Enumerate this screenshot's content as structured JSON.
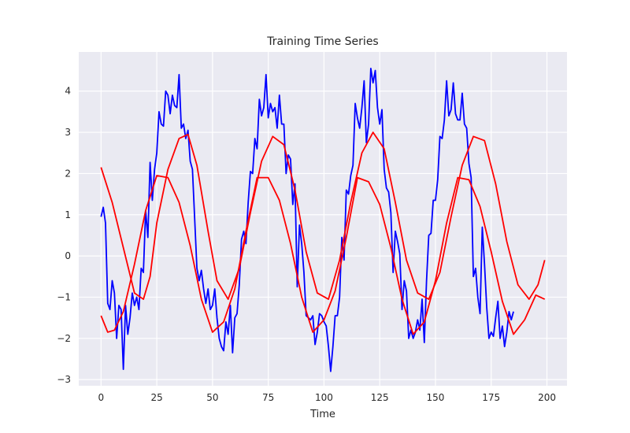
{
  "chart_data": {
    "type": "line",
    "title": "Training Time Series",
    "xlabel": "Time",
    "ylabel": "",
    "xlim": [
      -10,
      209
    ],
    "ylim": [
      -3.15,
      4.95
    ],
    "xticks": [
      0,
      25,
      50,
      75,
      100,
      125,
      150,
      175,
      200
    ],
    "yticks": [
      -3,
      -2,
      -1,
      0,
      1,
      2,
      3,
      4
    ],
    "grid": true,
    "background": "#EAEAF2",
    "series": [
      {
        "color": "#0000FF",
        "points": [
          [
            0,
            0.95
          ],
          [
            1,
            1.18
          ],
          [
            2,
            0.8
          ],
          [
            3,
            -1.15
          ],
          [
            4,
            -1.3
          ],
          [
            5,
            -0.6
          ],
          [
            6,
            -0.9
          ],
          [
            7,
            -2.0
          ],
          [
            8,
            -1.2
          ],
          [
            9,
            -1.3
          ],
          [
            10,
            -2.75
          ],
          [
            11,
            -1.2
          ],
          [
            12,
            -1.9
          ],
          [
            13,
            -1.5
          ],
          [
            14,
            -0.9
          ],
          [
            15,
            -1.2
          ],
          [
            16,
            -1.0
          ],
          [
            17,
            -1.3
          ],
          [
            18,
            -0.3
          ],
          [
            19,
            -0.4
          ],
          [
            20,
            1.1
          ],
          [
            21,
            0.45
          ],
          [
            22,
            2.27
          ],
          [
            23,
            1.35
          ],
          [
            24,
            2.1
          ],
          [
            25,
            2.5
          ],
          [
            26,
            3.5
          ],
          [
            27,
            3.2
          ],
          [
            28,
            3.15
          ],
          [
            29,
            4.0
          ],
          [
            30,
            3.9
          ],
          [
            31,
            3.45
          ],
          [
            32,
            3.9
          ],
          [
            33,
            3.65
          ],
          [
            34,
            3.6
          ],
          [
            35,
            4.4
          ],
          [
            36,
            3.1
          ],
          [
            37,
            3.2
          ],
          [
            38,
            2.85
          ],
          [
            39,
            3.05
          ],
          [
            40,
            2.3
          ],
          [
            41,
            2.1
          ],
          [
            42,
            0.9
          ],
          [
            43,
            -0.3
          ],
          [
            44,
            -0.6
          ],
          [
            45,
            -0.35
          ],
          [
            46,
            -0.8
          ],
          [
            47,
            -1.15
          ],
          [
            48,
            -0.8
          ],
          [
            49,
            -1.3
          ],
          [
            50,
            -1.2
          ],
          [
            51,
            -0.8
          ],
          [
            52,
            -1.5
          ],
          [
            53,
            -2.0
          ],
          [
            54,
            -2.2
          ],
          [
            55,
            -2.3
          ],
          [
            56,
            -1.6
          ],
          [
            57,
            -1.9
          ],
          [
            58,
            -1.2
          ],
          [
            59,
            -2.35
          ],
          [
            60,
            -1.5
          ],
          [
            61,
            -1.4
          ],
          [
            62,
            -0.7
          ],
          [
            63,
            0.4
          ],
          [
            64,
            0.6
          ],
          [
            65,
            0.3
          ],
          [
            66,
            1.3
          ],
          [
            67,
            2.05
          ],
          [
            68,
            2.0
          ],
          [
            69,
            2.85
          ],
          [
            70,
            2.6
          ],
          [
            71,
            3.8
          ],
          [
            72,
            3.4
          ],
          [
            73,
            3.6
          ],
          [
            74,
            4.4
          ],
          [
            75,
            3.35
          ],
          [
            76,
            3.7
          ],
          [
            77,
            3.5
          ],
          [
            78,
            3.6
          ],
          [
            79,
            3.1
          ],
          [
            80,
            3.9
          ],
          [
            81,
            3.2
          ],
          [
            82,
            3.2
          ],
          [
            83,
            2.0
          ],
          [
            84,
            2.45
          ],
          [
            85,
            2.35
          ],
          [
            86,
            1.25
          ],
          [
            87,
            1.75
          ],
          [
            88,
            -0.75
          ],
          [
            89,
            0.75
          ],
          [
            90,
            0.3
          ],
          [
            91,
            -0.4
          ],
          [
            92,
            -1.45
          ],
          [
            93,
            -1.5
          ],
          [
            94,
            -1.55
          ],
          [
            95,
            -1.45
          ],
          [
            96,
            -2.15
          ],
          [
            97,
            -1.85
          ],
          [
            98,
            -1.4
          ],
          [
            99,
            -1.45
          ],
          [
            100,
            -1.6
          ],
          [
            101,
            -1.7
          ],
          [
            102,
            -2.2
          ],
          [
            103,
            -2.8
          ],
          [
            104,
            -2.2
          ],
          [
            105,
            -1.45
          ],
          [
            106,
            -1.45
          ],
          [
            107,
            -1.0
          ],
          [
            108,
            0.45
          ],
          [
            109,
            -0.1
          ],
          [
            110,
            1.6
          ],
          [
            111,
            1.5
          ],
          [
            112,
            1.95
          ],
          [
            113,
            2.2
          ],
          [
            114,
            3.7
          ],
          [
            115,
            3.35
          ],
          [
            116,
            3.1
          ],
          [
            117,
            3.6
          ],
          [
            118,
            4.25
          ],
          [
            119,
            2.75
          ],
          [
            120,
            3.2
          ],
          [
            121,
            4.55
          ],
          [
            122,
            4.2
          ],
          [
            123,
            4.5
          ],
          [
            124,
            3.6
          ],
          [
            125,
            3.2
          ],
          [
            126,
            3.55
          ],
          [
            127,
            2.1
          ],
          [
            128,
            1.65
          ],
          [
            129,
            1.55
          ],
          [
            130,
            1.05
          ],
          [
            131,
            -0.4
          ],
          [
            132,
            0.6
          ],
          [
            133,
            0.35
          ],
          [
            134,
            0.05
          ],
          [
            135,
            -1.3
          ],
          [
            136,
            -0.6
          ],
          [
            137,
            -0.85
          ],
          [
            138,
            -2.0
          ],
          [
            139,
            -1.8
          ],
          [
            140,
            -2.0
          ],
          [
            141,
            -1.85
          ],
          [
            142,
            -1.55
          ],
          [
            143,
            -1.8
          ],
          [
            144,
            -1.05
          ],
          [
            145,
            -2.1
          ],
          [
            146,
            -0.6
          ],
          [
            147,
            0.5
          ],
          [
            148,
            0.55
          ],
          [
            149,
            1.35
          ],
          [
            150,
            1.35
          ],
          [
            151,
            1.85
          ],
          [
            152,
            2.9
          ],
          [
            153,
            2.85
          ],
          [
            154,
            3.3
          ],
          [
            155,
            4.25
          ],
          [
            156,
            3.4
          ],
          [
            157,
            3.55
          ],
          [
            158,
            4.2
          ],
          [
            159,
            3.45
          ],
          [
            160,
            3.3
          ],
          [
            161,
            3.3
          ],
          [
            162,
            3.95
          ],
          [
            163,
            3.2
          ],
          [
            164,
            3.1
          ],
          [
            165,
            2.25
          ],
          [
            166,
            1.9
          ],
          [
            167,
            -0.5
          ],
          [
            168,
            -0.3
          ],
          [
            169,
            -1.0
          ],
          [
            170,
            -1.4
          ],
          [
            171,
            0.7
          ],
          [
            172,
            -0.2
          ],
          [
            173,
            -1.25
          ],
          [
            174,
            -2.0
          ],
          [
            175,
            -1.85
          ],
          [
            176,
            -1.95
          ],
          [
            177,
            -1.5
          ],
          [
            178,
            -1.1
          ],
          [
            179,
            -2.0
          ],
          [
            180,
            -1.7
          ],
          [
            181,
            -2.2
          ],
          [
            182,
            -1.85
          ],
          [
            183,
            -1.35
          ],
          [
            184,
            -1.55
          ],
          [
            185,
            -1.35
          ]
        ]
      },
      {
        "color": "#FF0000",
        "points": [
          [
            0,
            2.15
          ],
          [
            5,
            1.3
          ],
          [
            10,
            0.2
          ],
          [
            15,
            -0.9
          ],
          [
            19,
            -1.05
          ],
          [
            22,
            -0.5
          ],
          [
            25,
            0.8
          ],
          [
            30,
            2.1
          ],
          [
            35,
            2.85
          ],
          [
            39,
            2.95
          ],
          [
            43,
            2.2
          ],
          [
            48,
            0.6
          ],
          [
            52,
            -0.6
          ],
          [
            57,
            -1.05
          ],
          [
            62,
            -0.3
          ],
          [
            67,
            1.05
          ],
          [
            72,
            2.3
          ],
          [
            77,
            2.9
          ],
          [
            82,
            2.7
          ],
          [
            87,
            1.6
          ],
          [
            92,
            0.1
          ],
          [
            97,
            -0.9
          ],
          [
            102,
            -1.05
          ],
          [
            107,
            -0.1
          ],
          [
            112,
            1.3
          ],
          [
            117,
            2.5
          ],
          [
            122,
            3.0
          ],
          [
            127,
            2.6
          ],
          [
            132,
            1.3
          ],
          [
            137,
            -0.1
          ],
          [
            142,
            -0.9
          ],
          [
            147,
            -1.05
          ],
          [
            152,
            -0.4
          ],
          [
            157,
            0.95
          ],
          [
            162,
            2.2
          ],
          [
            167,
            2.9
          ],
          [
            172,
            2.8
          ],
          [
            177,
            1.75
          ],
          [
            182,
            0.35
          ],
          [
            187,
            -0.7
          ],
          [
            192,
            -1.05
          ],
          [
            196,
            -0.7
          ],
          [
            199,
            -0.1
          ]
        ]
      },
      {
        "color": "#FF0000",
        "points": [
          [
            0,
            -1.45
          ],
          [
            3,
            -1.85
          ],
          [
            6,
            -1.8
          ],
          [
            10,
            -1.35
          ],
          [
            15,
            -0.2
          ],
          [
            20,
            1.1
          ],
          [
            25,
            1.95
          ],
          [
            30,
            1.9
          ],
          [
            35,
            1.3
          ],
          [
            40,
            0.25
          ],
          [
            45,
            -1.05
          ],
          [
            50,
            -1.85
          ],
          [
            55,
            -1.6
          ],
          [
            60,
            -0.8
          ],
          [
            65,
            0.6
          ],
          [
            70,
            1.9
          ],
          [
            75,
            1.9
          ],
          [
            80,
            1.35
          ],
          [
            85,
            0.3
          ],
          [
            90,
            -1.0
          ],
          [
            95,
            -1.85
          ],
          [
            100,
            -1.55
          ],
          [
            105,
            -0.85
          ],
          [
            110,
            0.45
          ],
          [
            115,
            1.9
          ],
          [
            120,
            1.8
          ],
          [
            125,
            1.25
          ],
          [
            130,
            0.2
          ],
          [
            135,
            -1.05
          ],
          [
            140,
            -1.9
          ],
          [
            145,
            -1.6
          ],
          [
            150,
            -0.6
          ],
          [
            155,
            0.8
          ],
          [
            160,
            1.9
          ],
          [
            165,
            1.85
          ],
          [
            170,
            1.2
          ],
          [
            175,
            0.1
          ],
          [
            180,
            -1.1
          ],
          [
            185,
            -1.9
          ],
          [
            190,
            -1.55
          ],
          [
            195,
            -0.95
          ],
          [
            199,
            -1.05
          ]
        ]
      }
    ]
  }
}
